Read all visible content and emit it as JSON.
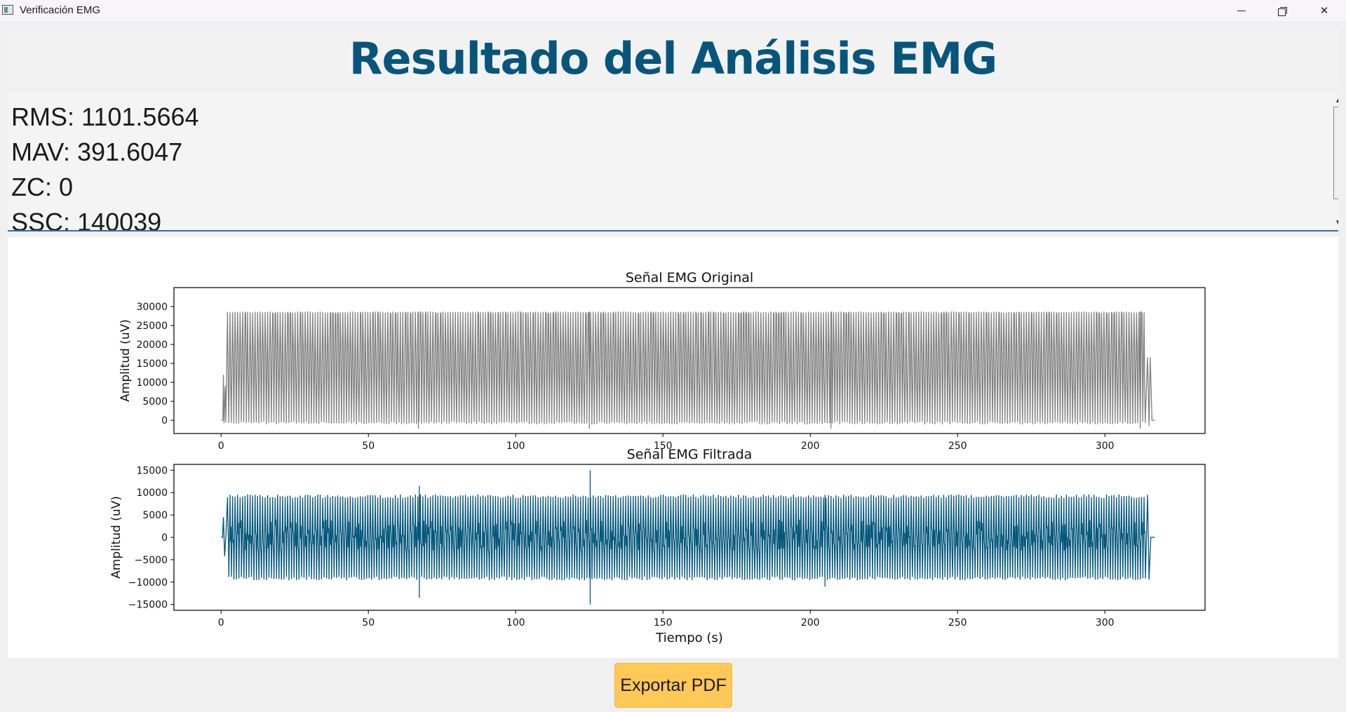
{
  "window": {
    "title": "Verificación EMG"
  },
  "header": {
    "title": "Resultado del Análisis EMG"
  },
  "metrics": {
    "lines": [
      "RMS: 1101.5664",
      "MAV: 391.6047",
      "ZC: 0",
      "SSC: 140039"
    ]
  },
  "export": {
    "label": "Exportar PDF"
  },
  "colors": {
    "title": "#07557b",
    "original_signal": "#7f7f7f",
    "filtered_signal": "#00557a",
    "button": "#ffc857"
  },
  "chart_data": [
    {
      "type": "line",
      "title": "Señal EMG Original",
      "xlabel": "",
      "ylabel": "Amplitud (uV)",
      "xlim": [
        -16,
        334
      ],
      "ylim": [
        -3500,
        35000
      ],
      "xticks": [
        0,
        50,
        100,
        150,
        200,
        250,
        300
      ],
      "yticks": [
        0,
        5000,
        10000,
        15000,
        20000,
        25000,
        30000
      ],
      "series": [
        {
          "color": "#7f7f7f",
          "x": [
            0,
            0.5,
            1.0,
            1.5,
            2.0,
            2.5,
            3.0,
            5,
            10,
            20,
            40,
            67,
            67.5,
            100,
            125,
            125.5,
            150,
            200,
            250,
            300,
            314,
            314.5,
            315,
            315.5,
            316,
            317
          ],
          "y": [
            0,
            0,
            12000,
            -800,
            28700,
            -800,
            28700,
            18000,
            28700,
            -600,
            28700,
            -2000,
            28700,
            28700,
            -2000,
            28700,
            28700,
            28700,
            28700,
            28700,
            28700,
            16600,
            -1500,
            16600,
            0,
            0
          ]
        }
      ]
    },
    {
      "type": "line",
      "title": "Señal EMG Filtrada",
      "xlabel": "Tiempo (s)",
      "ylabel": "Amplitud (uV)",
      "xlim": [
        -16,
        334
      ],
      "ylim": [
        -16300,
        16300
      ],
      "xticks": [
        0,
        50,
        100,
        150,
        200,
        250,
        300
      ],
      "yticks": [
        -15000,
        -10000,
        -5000,
        0,
        5000,
        10000,
        15000
      ],
      "series": [
        {
          "color": "#00557a",
          "x": [
            0,
            1,
            2,
            5,
            10,
            50,
            67,
            67.3,
            100,
            125,
            125.3,
            150,
            200,
            205,
            250,
            300,
            314,
            315,
            317
          ],
          "y": [
            0,
            4500,
            9500,
            -9500,
            9500,
            -9500,
            11500,
            -13500,
            9500,
            15000,
            -15000,
            9500,
            -9500,
            -11000,
            9500,
            -9500,
            9500,
            -9500,
            0
          ]
        }
      ]
    }
  ]
}
